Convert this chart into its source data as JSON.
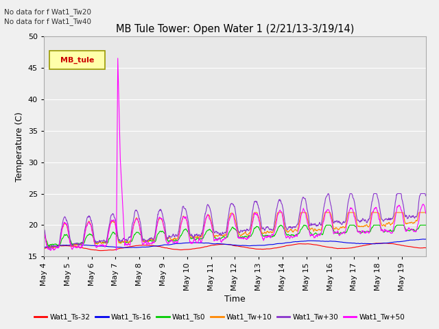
{
  "title": "MB Tule Tower: Open Water 1 (2/21/13-3/19/14)",
  "ylabel": "Temperature (C)",
  "xlabel": "Time",
  "ylim": [
    15,
    50
  ],
  "no_data_text_1": "No data for f Wat1_Tw20",
  "no_data_text_2": "No data for f Wat1_Tw40",
  "legend_label": "MB_tule",
  "line_colors": [
    "#ff0000",
    "#0000ee",
    "#00cc00",
    "#ff8800",
    "#8833cc",
    "#ff00ff"
  ],
  "line_labels": [
    "Wat1_Ts-32",
    "Wat1_Ts-16",
    "Wat1_Ts0",
    "Wat1_Tw+10",
    "Wat1_Tw+30",
    "Wat1_Tw+50"
  ],
  "bg_color": "#e8e8e8",
  "n_days": 16,
  "x_tick_labels": [
    "May 4",
    "May 5",
    "May 6",
    "May 7",
    "May 8",
    "May 9",
    "May 10",
    "May 11",
    "May 12",
    "May 13",
    "May 14",
    "May 15",
    "May 16",
    "May 17",
    "May 18",
    "May 19"
  ],
  "yticks": [
    15,
    20,
    25,
    30,
    35,
    40,
    45,
    50
  ]
}
